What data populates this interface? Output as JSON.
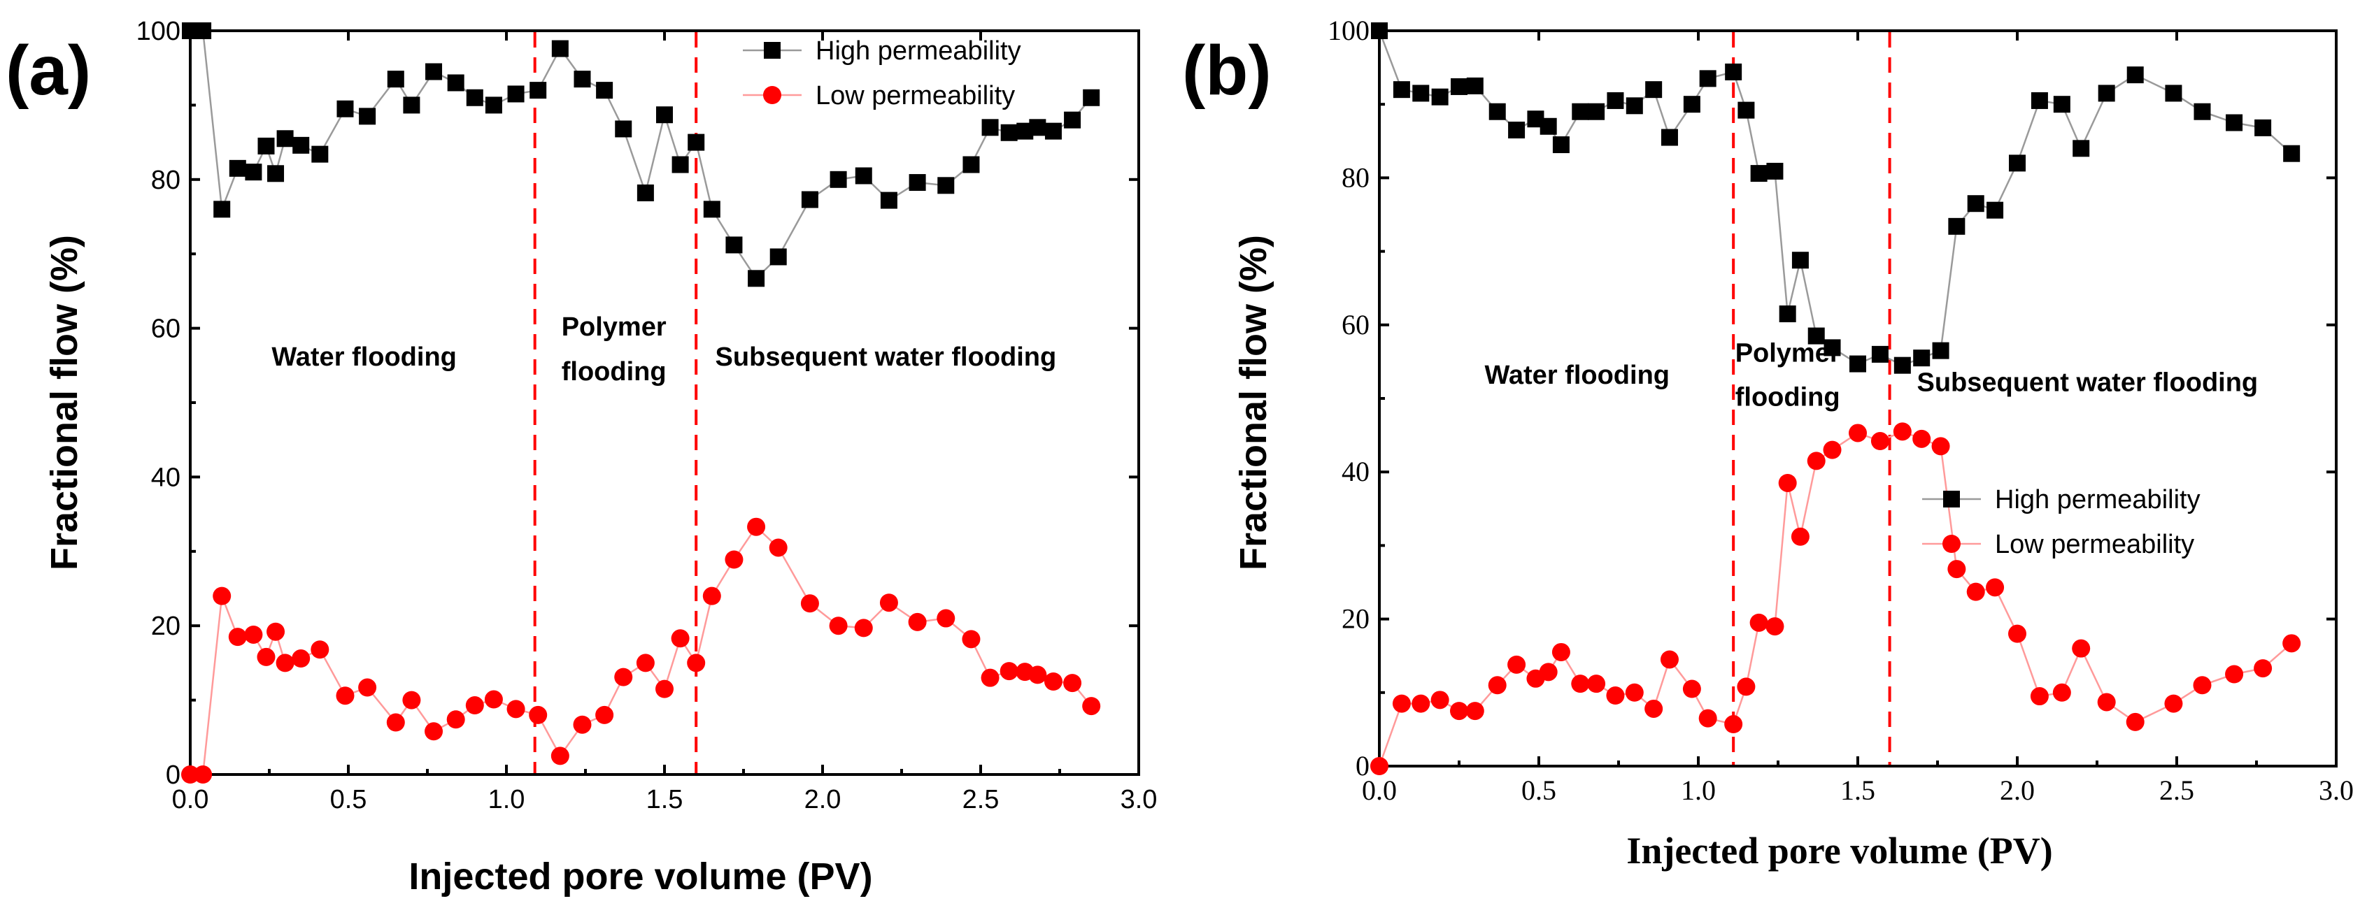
{
  "chart_data": [
    {
      "panel": "(a)",
      "type": "line",
      "xlabel": "Injected pore volume (PV)",
      "ylabel": "Fractional flow (%)",
      "xlim": [
        0,
        3.0
      ],
      "ylim": [
        0,
        100
      ],
      "xticks": [
        0.0,
        0.5,
        1.0,
        1.5,
        2.0,
        2.5,
        3.0
      ],
      "xtick_labels": [
        "0.0",
        "0.5",
        "1.0",
        "1.5",
        "2.0",
        "2.5",
        "3.0"
      ],
      "yticks": [
        0,
        20,
        40,
        60,
        80,
        100
      ],
      "ytick_labels": [
        "0",
        "20",
        "40",
        "60",
        "80",
        "100"
      ],
      "vlines": [
        1.09,
        1.6
      ],
      "annotations": [
        {
          "text": "Water flooding",
          "x": 0.55,
          "y": 55
        },
        {
          "text": "Polymer",
          "x": 1.34,
          "y": 59
        },
        {
          "text": "flooding",
          "x": 1.34,
          "y": 53
        },
        {
          "text": "Subsequent water flooding",
          "x": 2.2,
          "y": 55
        }
      ],
      "legend": [
        "High permeability",
        "Low permeability"
      ],
      "series": [
        {
          "name": "High permeability",
          "color": "#000000",
          "marker": "square",
          "x": [
            0.0,
            0.04,
            0.1,
            0.15,
            0.2,
            0.24,
            0.27,
            0.3,
            0.35,
            0.41,
            0.49,
            0.56,
            0.65,
            0.7,
            0.77,
            0.84,
            0.9,
            0.96,
            1.03,
            1.1,
            1.17,
            1.24,
            1.31,
            1.37,
            1.44,
            1.5,
            1.55,
            1.6,
            1.65,
            1.72,
            1.79,
            1.86,
            1.96,
            2.05,
            2.13,
            2.21,
            2.3,
            2.39,
            2.47,
            2.53,
            2.59,
            2.64,
            2.68,
            2.73,
            2.79,
            2.85
          ],
          "y": [
            100,
            100,
            76,
            81.5,
            81,
            84.5,
            80.8,
            85.5,
            84.6,
            83.4,
            89.5,
            88.5,
            93.5,
            90,
            94.5,
            93,
            91,
            90,
            91.5,
            92,
            97.6,
            93.5,
            92,
            86.8,
            78.2,
            88.7,
            82,
            85,
            76,
            71.2,
            66.7,
            69.6,
            77.3,
            80,
            80.5,
            77.2,
            79.6,
            79.2,
            82,
            87,
            86.3,
            86.5,
            87,
            86.5,
            88,
            91
          ]
        },
        {
          "name": "Low permeability",
          "color": "#ff0000",
          "marker": "circle",
          "x": [
            0.0,
            0.04,
            0.1,
            0.15,
            0.2,
            0.24,
            0.27,
            0.3,
            0.35,
            0.41,
            0.49,
            0.56,
            0.65,
            0.7,
            0.77,
            0.84,
            0.9,
            0.96,
            1.03,
            1.1,
            1.17,
            1.24,
            1.31,
            1.37,
            1.44,
            1.5,
            1.55,
            1.6,
            1.65,
            1.72,
            1.79,
            1.86,
            1.96,
            2.05,
            2.13,
            2.21,
            2.3,
            2.39,
            2.47,
            2.53,
            2.59,
            2.64,
            2.68,
            2.73,
            2.79,
            2.85
          ],
          "y": [
            0,
            0,
            24,
            18.5,
            18.8,
            15.8,
            19.2,
            15,
            15.6,
            16.8,
            10.6,
            11.7,
            7,
            10,
            5.8,
            7.4,
            9.3,
            10.1,
            8.8,
            8,
            2.5,
            6.7,
            8,
            13.1,
            15,
            11.5,
            18.3,
            15,
            24,
            28.9,
            33.3,
            30.5,
            23,
            20,
            19.7,
            23.1,
            20.5,
            21,
            18.2,
            13,
            13.9,
            13.8,
            13.4,
            12.5,
            12.3,
            9.2
          ]
        }
      ]
    },
    {
      "panel": "(b)",
      "type": "line",
      "xlabel": "Injected pore volume (PV)",
      "ylabel": "Fractional flow (%)",
      "xlim": [
        0,
        3.0
      ],
      "ylim": [
        0,
        100
      ],
      "xticks": [
        0.0,
        0.5,
        1.0,
        1.5,
        2.0,
        2.5,
        3.0
      ],
      "xtick_labels": [
        "0.0",
        "0.5",
        "1.0",
        "1.5",
        "2.0",
        "2.5",
        "3.0"
      ],
      "yticks": [
        0,
        20,
        40,
        60,
        80,
        100
      ],
      "ytick_labels": [
        "0",
        "20",
        "40",
        "60",
        "80",
        "100"
      ],
      "vlines": [
        1.11,
        1.6
      ],
      "annotations": [
        {
          "text": "Water flooding",
          "x": 0.62,
          "y": 52
        },
        {
          "text": "Polymer",
          "x": 1.28,
          "y": 55
        },
        {
          "text": "flooding",
          "x": 1.28,
          "y": 49
        },
        {
          "text": "Subsequent water flooding",
          "x": 2.22,
          "y": 51
        }
      ],
      "legend": [
        "High permeability",
        "Low permeability"
      ],
      "series": [
        {
          "name": "High permeability",
          "color": "#000000",
          "marker": "square",
          "x": [
            0.0,
            0.07,
            0.13,
            0.19,
            0.25,
            0.3,
            0.37,
            0.43,
            0.49,
            0.53,
            0.57,
            0.63,
            0.68,
            0.74,
            0.8,
            0.86,
            0.91,
            0.98,
            1.03,
            1.11,
            1.15,
            1.19,
            1.24,
            1.28,
            1.32,
            1.37,
            1.42,
            1.5,
            1.57,
            1.64,
            1.7,
            1.76,
            1.81,
            1.87,
            1.93,
            2.0,
            2.07,
            2.14,
            2.2,
            2.28,
            2.37,
            2.49,
            2.58,
            2.68,
            2.77,
            2.86
          ],
          "y": [
            100,
            92,
            91.5,
            91,
            92.4,
            92.5,
            89,
            86.5,
            88,
            87,
            84.5,
            89,
            89,
            90.5,
            89.8,
            92,
            85.5,
            90,
            93.5,
            94.4,
            89.2,
            80.6,
            80.9,
            61.5,
            68.8,
            58.5,
            56.9,
            54.7,
            56,
            54.5,
            55.5,
            56.5,
            73.4,
            76.5,
            75.6,
            82,
            90.5,
            90,
            84,
            91.5,
            94,
            91.5,
            89,
            87.5,
            86.8,
            83.3
          ]
        },
        {
          "name": "Low permeability",
          "color": "#ff0000",
          "marker": "circle",
          "x": [
            0.0,
            0.07,
            0.13,
            0.19,
            0.25,
            0.3,
            0.37,
            0.43,
            0.49,
            0.53,
            0.57,
            0.63,
            0.68,
            0.74,
            0.8,
            0.86,
            0.91,
            0.98,
            1.03,
            1.11,
            1.15,
            1.19,
            1.24,
            1.28,
            1.32,
            1.37,
            1.42,
            1.5,
            1.57,
            1.64,
            1.7,
            1.76,
            1.81,
            1.87,
            1.93,
            2.0,
            2.07,
            2.14,
            2.2,
            2.28,
            2.37,
            2.49,
            2.58,
            2.68,
            2.77,
            2.86
          ],
          "y": [
            0,
            8.5,
            8.5,
            9,
            7.5,
            7.5,
            11,
            13.8,
            11.9,
            12.8,
            15.5,
            11.2,
            11.2,
            9.6,
            10,
            7.8,
            14.5,
            10.5,
            6.5,
            5.7,
            10.8,
            19.5,
            19,
            38.5,
            31.2,
            41.5,
            43,
            45.3,
            44.2,
            45.5,
            44.5,
            43.5,
            26.8,
            23.7,
            24.3,
            18,
            9.5,
            10,
            16,
            8.7,
            6,
            8.5,
            11,
            12.5,
            13.3,
            16.7
          ]
        }
      ]
    }
  ]
}
